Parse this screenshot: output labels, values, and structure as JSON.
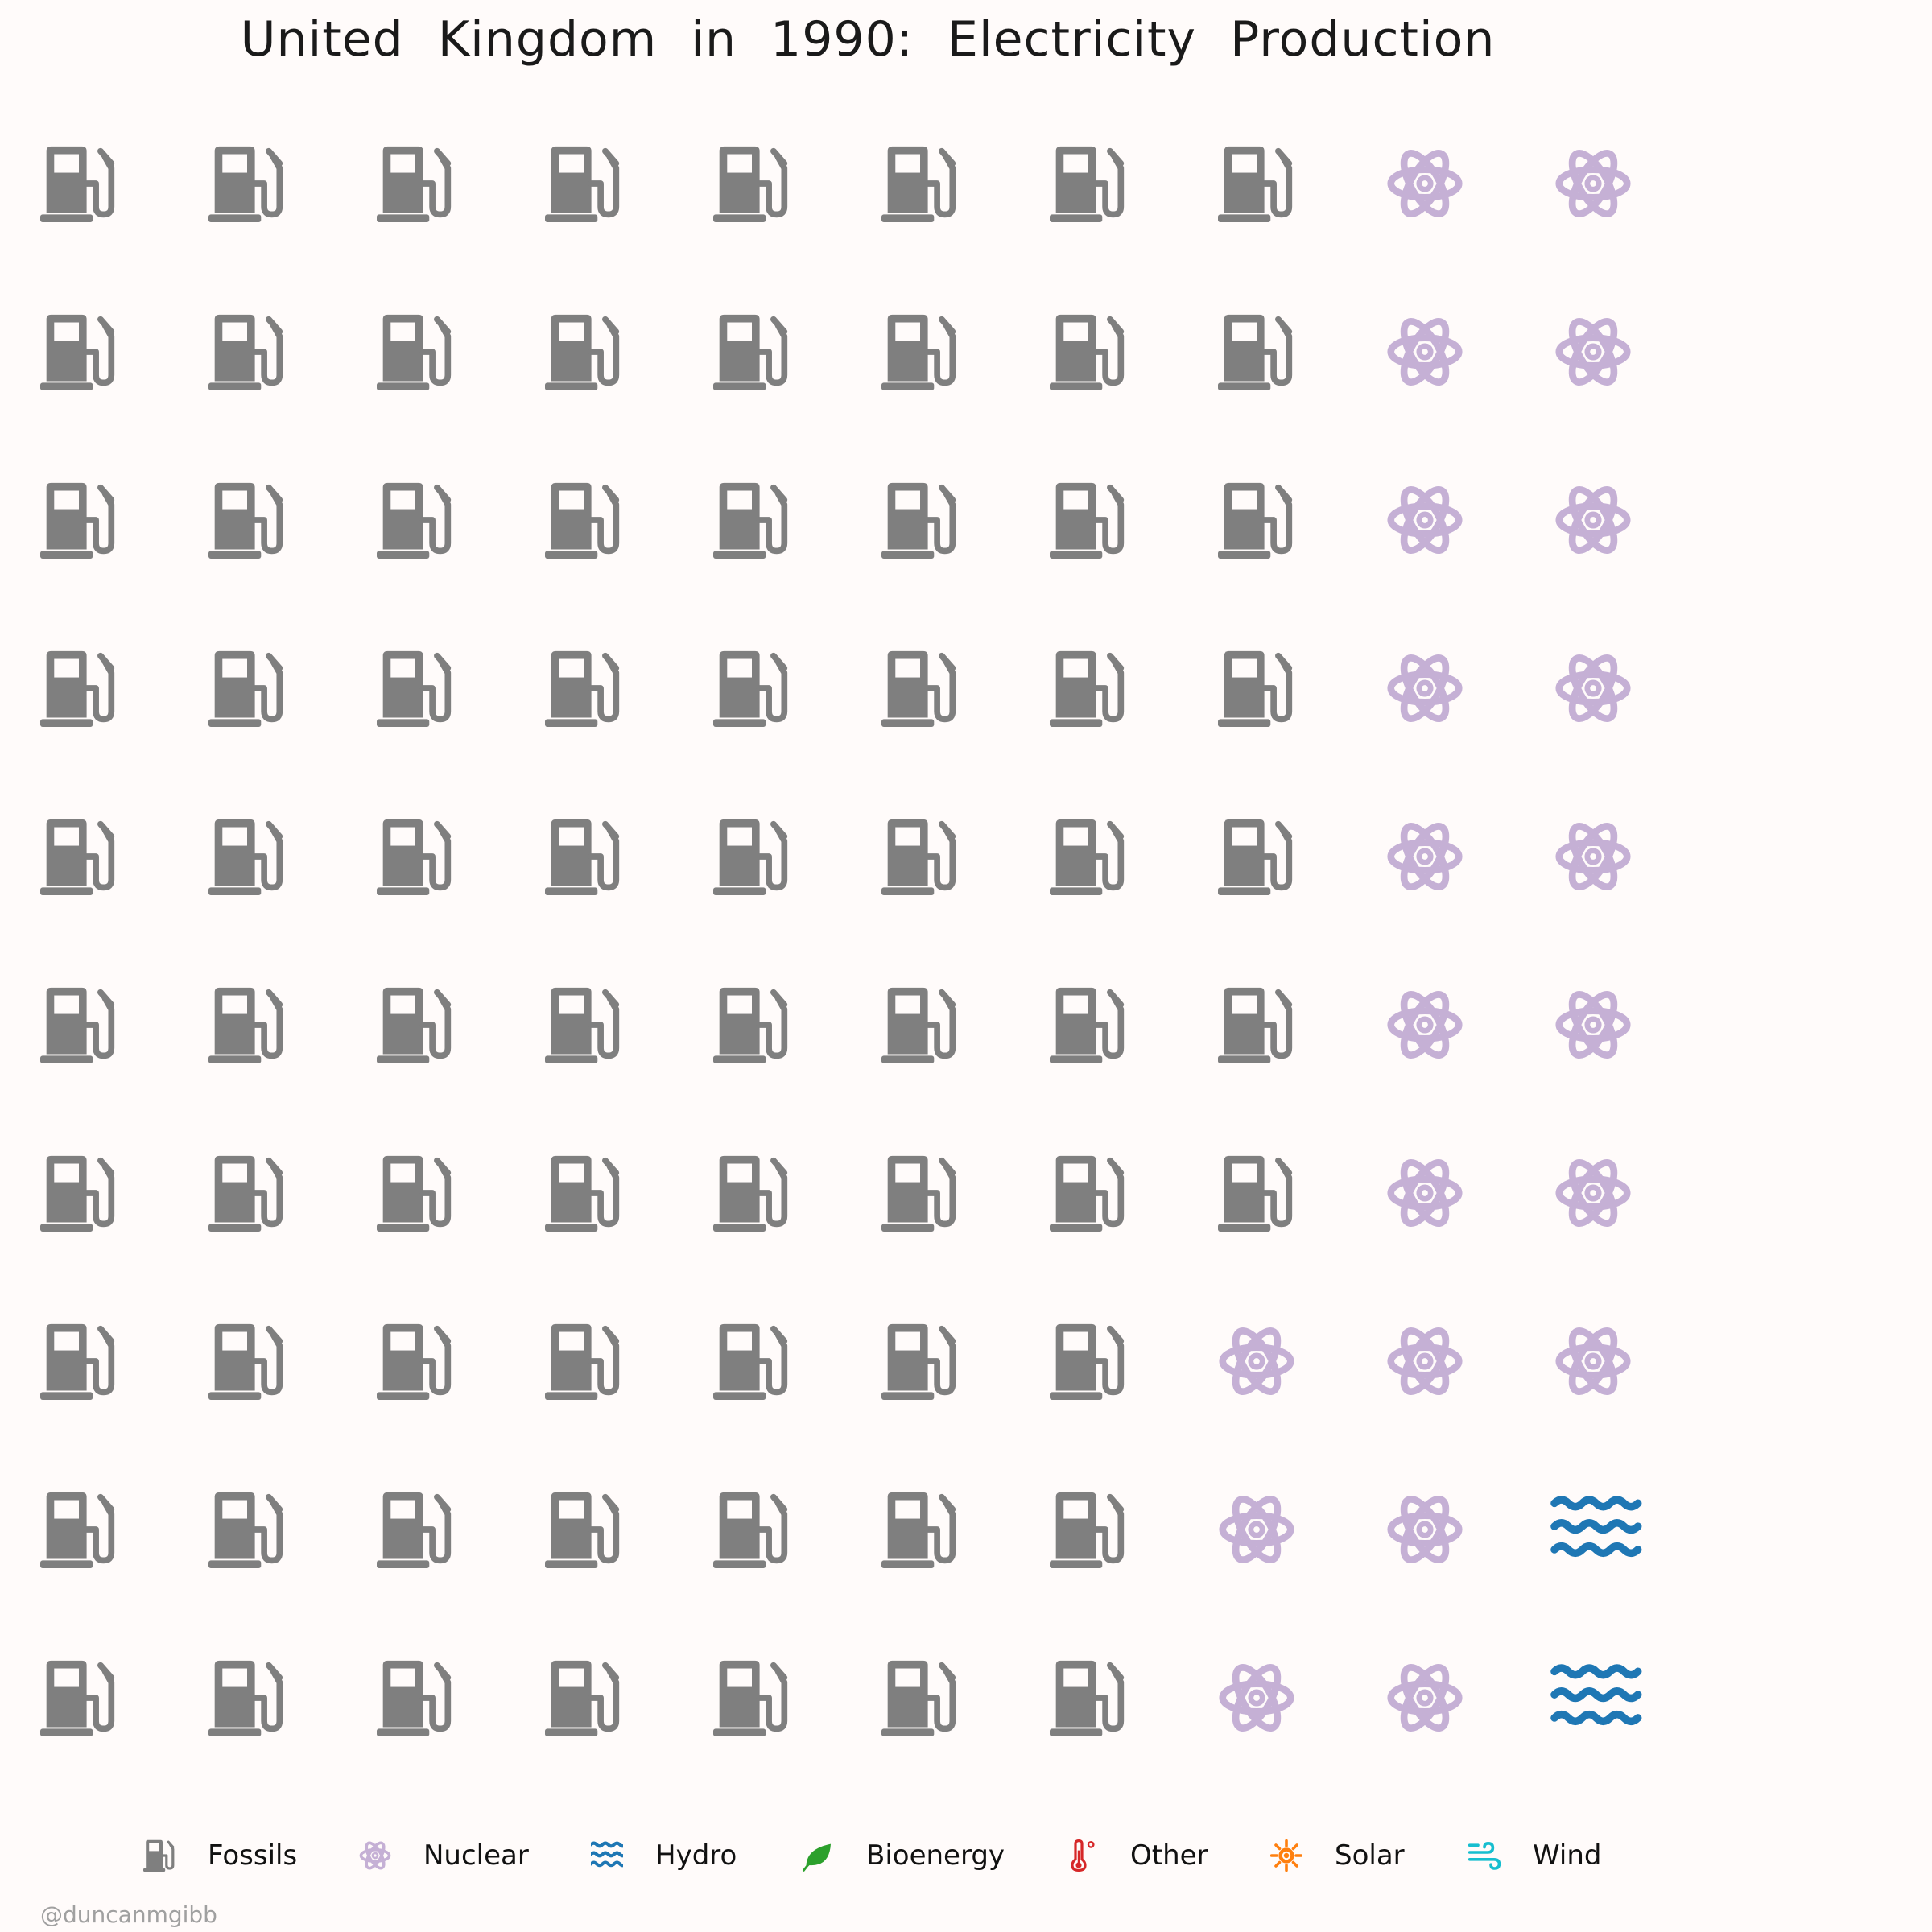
{
  "chart_data": {
    "type": "waffle",
    "title": "United Kingdom in 1990: Electricity Production",
    "grid": {
      "rows": 10,
      "columns": 10,
      "fill_order": "column-major"
    },
    "unit": "1 icon = 1% of electricity production",
    "categories": [
      {
        "name": "Fossils",
        "icon": "fuel-pump-icon",
        "color": "#7f7f7f",
        "value": 77
      },
      {
        "name": "Nuclear",
        "icon": "atom-icon",
        "color": "#c5b0d5",
        "value": 21
      },
      {
        "name": "Hydro",
        "icon": "water-icon",
        "color": "#1f77b4",
        "value": 2
      },
      {
        "name": "Bioenergy",
        "icon": "leaf-icon",
        "color": "#2ca02c",
        "value": 0
      },
      {
        "name": "Other",
        "icon": "thermometer-icon",
        "color": "#d62728",
        "value": 0
      },
      {
        "name": "Solar",
        "icon": "sun-icon",
        "color": "#ff7f0e",
        "value": 0
      },
      {
        "name": "Wind",
        "icon": "wind-icon",
        "color": "#17becf",
        "value": 0
      }
    ],
    "legend_placement": "bottom"
  },
  "credit": "@duncanmgibb"
}
